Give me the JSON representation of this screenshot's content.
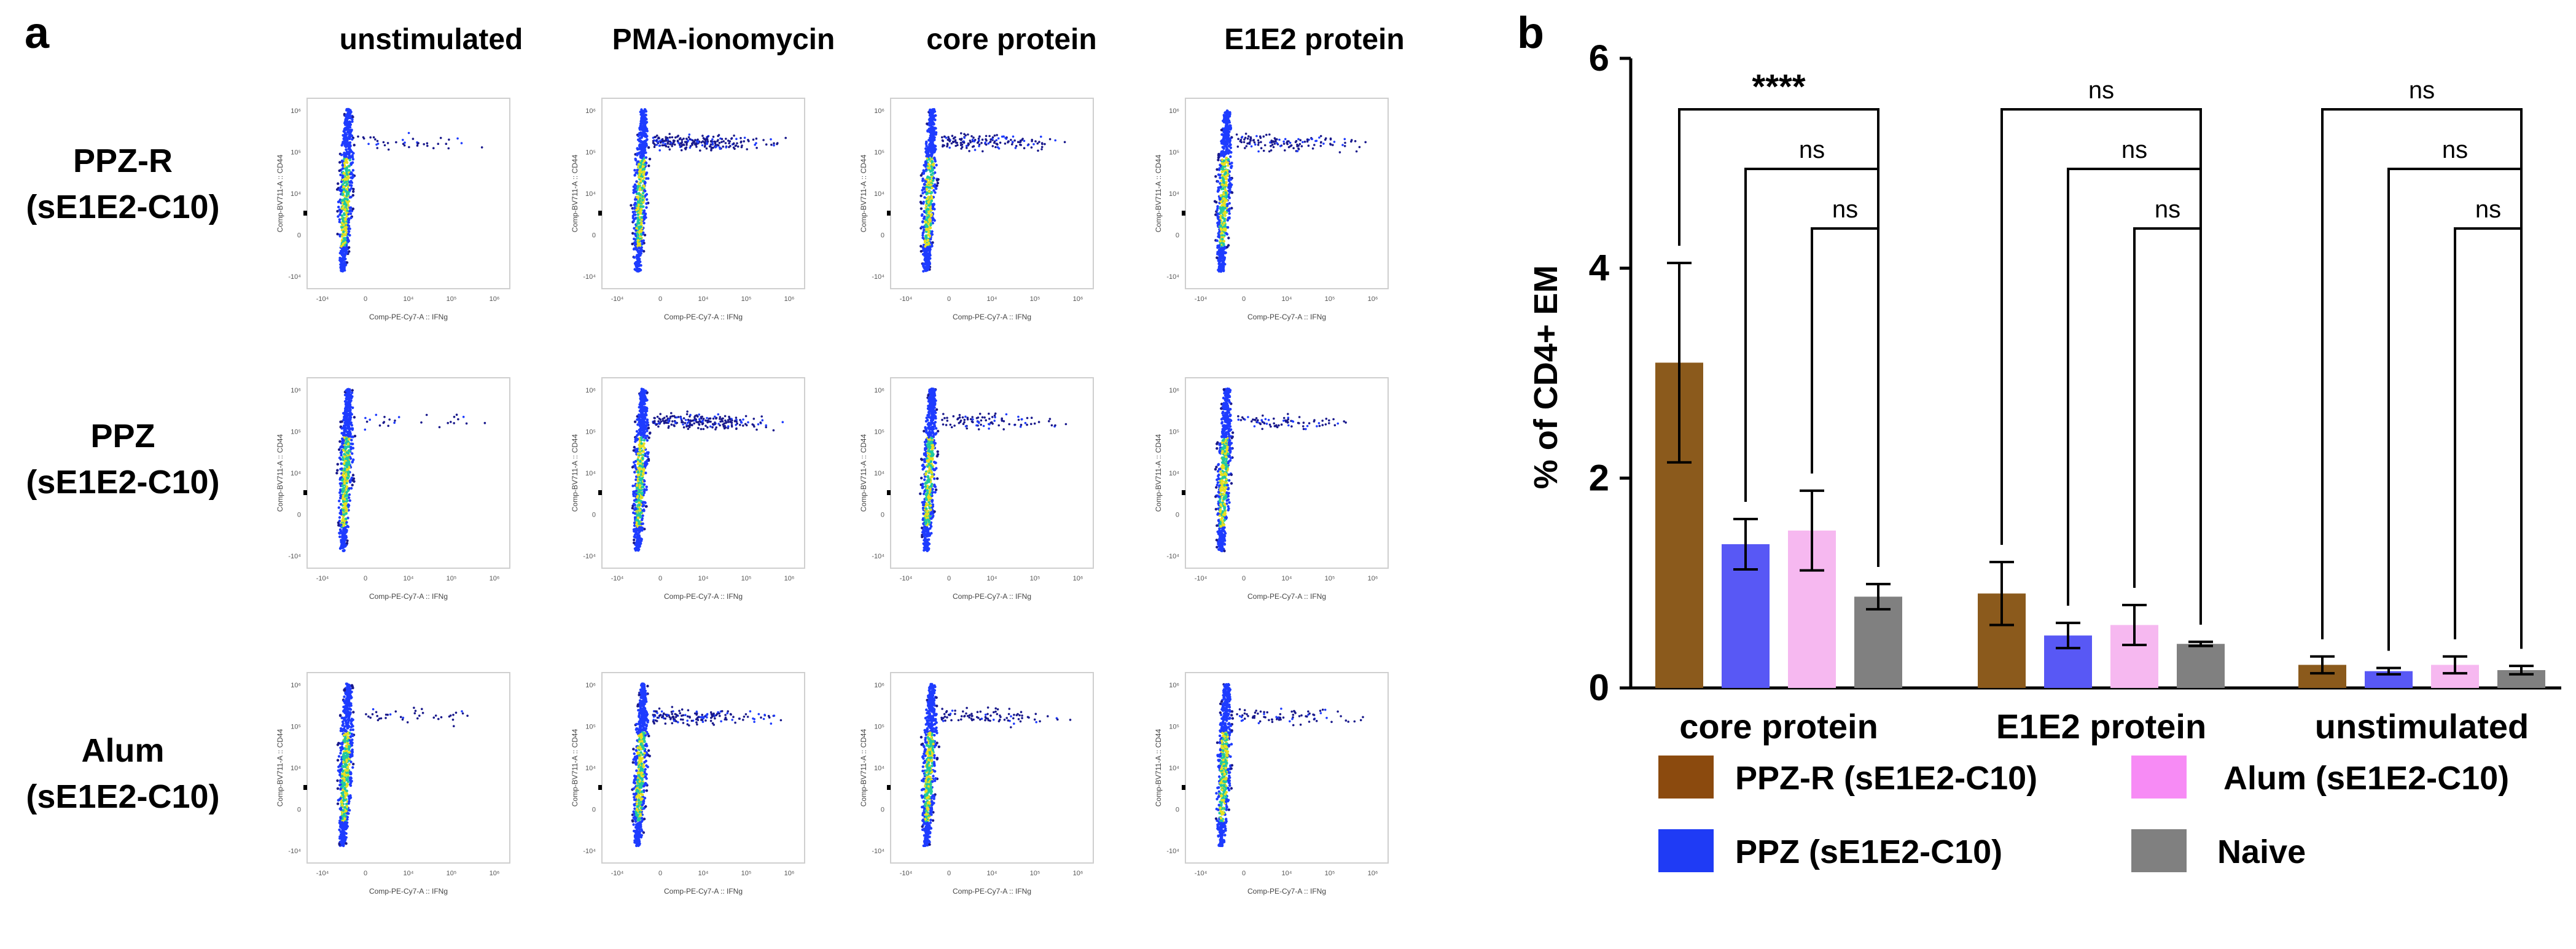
{
  "panel_a": {
    "label": "a",
    "column_headers": [
      "unstimulated",
      "PMA-ionomycin",
      "core protein",
      "E1E2 protein"
    ],
    "row_labels": [
      {
        "line1": "PPZ-R",
        "line2": "(sE1E2-C10)"
      },
      {
        "line1": "PPZ",
        "line2": "(sE1E2-C10)"
      },
      {
        "line1": "Alum",
        "line2": "(sE1E2-C10)"
      }
    ],
    "facs": {
      "xlabel": "Comp-PE-Cy7-A :: IFNg",
      "ylabel": "Comp-BV711-A :: CD44",
      "xticks": [
        "-10⁴",
        "0",
        "10⁴",
        "10⁵",
        "10⁶"
      ],
      "yticks": [
        "10⁶",
        "10⁵",
        "10⁴",
        "0",
        "-10⁴"
      ],
      "ifng_tail": [
        [
          0.15,
          0.9,
          0.6,
          0.5
        ],
        [
          0.1,
          0.85,
          0.35,
          0.3
        ],
        [
          0.15,
          0.6,
          0.35,
          0.3
        ]
      ]
    },
    "colors": {
      "dense": "#e8e020",
      "mid": "#20c8a0",
      "low": "#1e3cff",
      "sparse": "#1a1a8c"
    }
  },
  "chart_data": {
    "panel_label": "b",
    "type": "bar",
    "ylabel": "% of CD4+ EM",
    "ylim": [
      0,
      6
    ],
    "yticks": [
      0,
      2,
      4,
      6
    ],
    "categories": [
      "core protein",
      "E1E2 protein",
      "unstimulated"
    ],
    "series": [
      {
        "name": "PPZ-R (sE1E2-C10)",
        "color": "#8B5A1C",
        "values": [
          3.1,
          0.9,
          0.22
        ],
        "errors": [
          0.95,
          0.3,
          0.08
        ]
      },
      {
        "name": "PPZ (sE1E2-C10)",
        "color": "#5858F5",
        "values": [
          1.37,
          0.5,
          0.16
        ],
        "errors": [
          0.24,
          0.12,
          0.03
        ]
      },
      {
        "name": "Alum (sE1E2-C10)",
        "color": "#F6B8F0",
        "values": [
          1.5,
          0.6,
          0.22
        ],
        "errors": [
          0.38,
          0.19,
          0.08
        ]
      },
      {
        "name": "Naive",
        "color": "#808080",
        "values": [
          0.87,
          0.42,
          0.17
        ],
        "errors": [
          0.12,
          0.02,
          0.04
        ]
      }
    ],
    "significance": [
      [
        "****",
        "ns",
        "ns"
      ],
      [
        "ns",
        "ns",
        "ns"
      ],
      [
        "ns",
        "ns",
        "ns"
      ]
    ],
    "legend": {
      "position": "bottom",
      "columns": 2,
      "swatch_colors": [
        "#8B4A0E",
        "#1F3BF5",
        "#F78BF5",
        "#808080"
      ]
    }
  }
}
